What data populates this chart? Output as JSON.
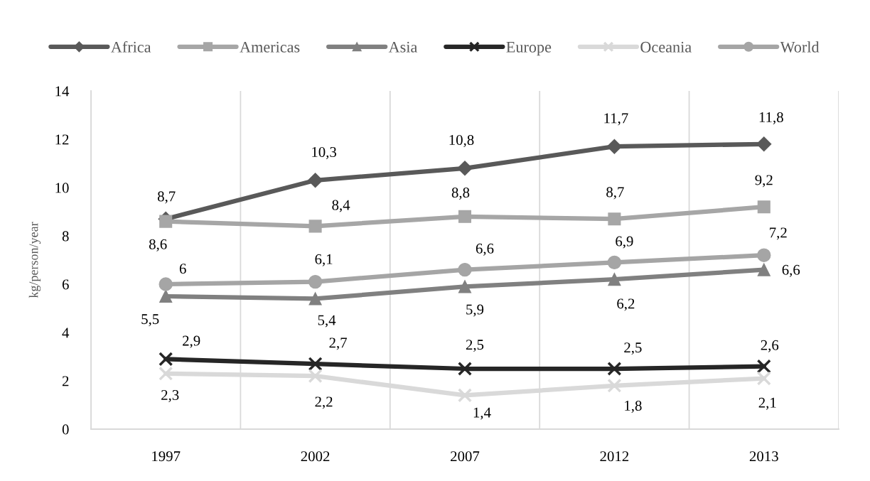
{
  "chart_data": {
    "type": "line",
    "ylabel": "kg/person/year",
    "categories": [
      "1997",
      "2002",
      "2007",
      "2012",
      "2013"
    ],
    "ylim": [
      0,
      14
    ],
    "yticks": [
      0,
      2,
      4,
      6,
      8,
      10,
      12,
      14
    ],
    "grid": "x",
    "legend": "top",
    "line_style": "solid",
    "series": [
      {
        "name": "Africa",
        "color": "#595959",
        "marker": "diamond",
        "values": [
          8.7,
          10.3,
          10.8,
          11.7,
          11.8
        ],
        "value_labels": [
          "8,7",
          "10,3",
          "10,8",
          "11,7",
          "11,8"
        ]
      },
      {
        "name": "Americas",
        "color": "#a6a6a6",
        "marker": "square",
        "values": [
          8.6,
          8.4,
          8.8,
          8.7,
          9.2
        ],
        "value_labels": [
          "8,6",
          "8,4",
          "8,8",
          "8,7",
          "9,2"
        ]
      },
      {
        "name": "Asia",
        "color": "#808080",
        "marker": "triangle",
        "values": [
          5.5,
          5.4,
          5.9,
          6.2,
          6.6
        ],
        "value_labels": [
          "5,5",
          "5,4",
          "5,9",
          "6,2",
          "6,6"
        ]
      },
      {
        "name": "Europe",
        "color": "#262626",
        "marker": "cross",
        "values": [
          2.9,
          2.7,
          2.5,
          2.5,
          2.6
        ],
        "value_labels": [
          "2,9",
          "2,7",
          "2,5",
          "2,5",
          "2,6"
        ]
      },
      {
        "name": "Oceania",
        "color": "#d9d9d9",
        "marker": "cross",
        "values": [
          2.3,
          2.2,
          1.4,
          1.8,
          2.1
        ],
        "value_labels": [
          "2,3",
          "2,2",
          "1,4",
          "1,8",
          "2,1"
        ]
      },
      {
        "name": "World",
        "color": "#a5a5a5",
        "marker": "circle",
        "values": [
          6,
          6.1,
          6.6,
          6.9,
          7.2
        ],
        "value_labels": [
          "6",
          "6,1",
          "6,6",
          "6,9",
          "7,2"
        ]
      }
    ]
  }
}
